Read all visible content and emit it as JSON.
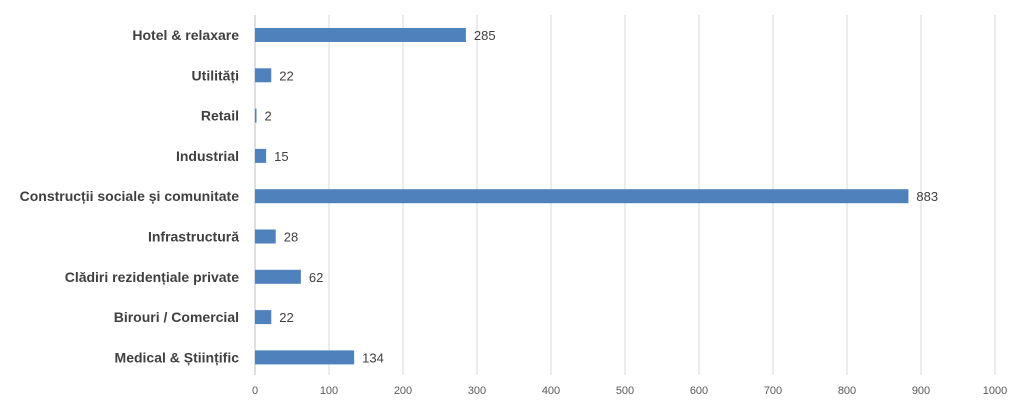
{
  "chart_data": {
    "type": "bar",
    "orientation": "horizontal",
    "title": "",
    "xlabel": "",
    "ylabel": "",
    "categories": [
      "Hotel & relaxare",
      "Utilități",
      "Retail",
      "Industrial",
      "Construcții sociale și comunitate",
      "Infrastructură",
      "Clădiri rezidențiale private",
      "Birouri / Comercial",
      "Medical & Științific"
    ],
    "values": [
      285,
      22,
      2,
      15,
      883,
      28,
      62,
      22,
      134
    ],
    "data_labels": [
      "285",
      "22",
      "2",
      "15",
      "883",
      "28",
      "62",
      "22",
      "134"
    ],
    "xlim": [
      0,
      1000
    ],
    "x_ticks": [
      0,
      100,
      200,
      300,
      400,
      500,
      600,
      700,
      800,
      900,
      1000
    ],
    "x_tick_labels": [
      "0",
      "100",
      "200",
      "300",
      "400",
      "500",
      "600",
      "700",
      "800",
      "900",
      "1000"
    ],
    "grid": "vertical",
    "legend": "none",
    "bar_color": "#4f81bd"
  }
}
